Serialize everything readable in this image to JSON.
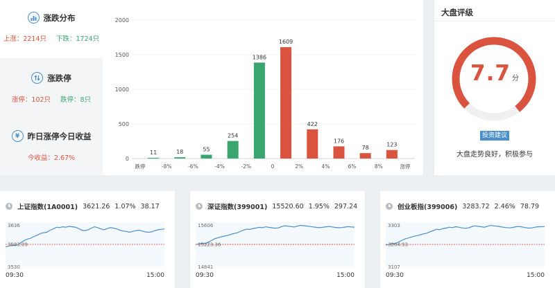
{
  "distribution": {
    "title": "涨跌分布",
    "icon": "bar-chart-icon",
    "up_label": "上涨：2214只",
    "down_label": "下跌：1724只"
  },
  "limit": {
    "title": "涨跌停",
    "icon": "exchange-icon",
    "up_label": "涨停：102只",
    "down_label": "跌停：8只"
  },
  "yesterday": {
    "title": "昨日涨停今日收益",
    "icon": "yen-icon",
    "icon_glyph": "¥",
    "profit_label": "今收益：2.67%"
  },
  "chart_data": {
    "type": "bar",
    "categories": [
      "跌停",
      "-8%~-6%",
      "-6%~-4%",
      "-4%~-2%",
      "-2%~0",
      "0~2%",
      "2%~4%",
      "4%~6%",
      "6%~8%",
      "8%~涨停"
    ],
    "values": [
      11,
      18,
      55,
      254,
      1386,
      1609,
      422,
      176,
      78,
      123
    ],
    "colors": [
      "#3aa56e",
      "#3aa56e",
      "#3aa56e",
      "#3aa56e",
      "#3aa56e",
      "#d9533f",
      "#d9533f",
      "#d9533f",
      "#d9533f",
      "#d9533f"
    ],
    "x_ticks": [
      "跌停",
      "-8%",
      "-6%",
      "-4%",
      "-2%",
      "0",
      "2%",
      "4%",
      "6%",
      "8%",
      "涨停"
    ],
    "y_ticks": [
      0,
      500,
      1000,
      1500,
      2000
    ],
    "ylim": [
      0,
      2000
    ],
    "grid": true
  },
  "rating": {
    "title": "大盘评级",
    "score": "7.7",
    "score_value": 7.7,
    "max_score": 10,
    "unit": "分",
    "badge": "投资建议",
    "description": "大盘走势良好，积极参与",
    "arc_color": "#d9533f",
    "track_color": "#f0f0f0"
  },
  "indices": [
    {
      "name": "上证指数(1A0001)",
      "price": "3621.26",
      "change_pct": "1.07%",
      "change": "38.17",
      "y_max": "3636",
      "y_prev": "3583.09",
      "y_min": "3530",
      "t_start": "09:30",
      "t_end": "15:00",
      "line_color": "#4a8fc9",
      "series": [
        3577,
        3579,
        3581,
        3580,
        3583,
        3588,
        3593,
        3596,
        3598,
        3602,
        3605,
        3609,
        3611,
        3612,
        3617,
        3620,
        3624,
        3623,
        3625,
        3624,
        3626,
        3625,
        3624,
        3621,
        3617,
        3616,
        3618,
        3622,
        3625,
        3623,
        3620,
        3618,
        3621,
        3623,
        3622,
        3620,
        3617,
        3615,
        3614,
        3612,
        3614,
        3616,
        3617,
        3615,
        3613,
        3612,
        3613,
        3616,
        3618,
        3619,
        3620
      ]
    },
    {
      "name": "深证指数(399001)",
      "price": "15520.60",
      "change_pct": "1.95%",
      "change": "297.24",
      "y_max": "15606",
      "y_prev": "15223.36",
      "y_min": "14841",
      "t_start": "09:30",
      "t_end": "15:00",
      "line_color": "#4a8fc9",
      "series": [
        15220,
        15232,
        15241,
        15238,
        15262,
        15290,
        15322,
        15338,
        15352,
        15367,
        15378,
        15395,
        15411,
        15422,
        15445,
        15467,
        15487,
        15482,
        15497,
        15506,
        15518,
        15511,
        15526,
        15519,
        15510,
        15503,
        15508,
        15528,
        15545,
        15539,
        15531,
        15524,
        15538,
        15552,
        15546,
        15540,
        15532,
        15525,
        15518,
        15512,
        15519,
        15527,
        15532,
        15525,
        15516,
        15510,
        15514,
        15522,
        15530,
        15525,
        15521
      ]
    },
    {
      "name": "创业板指(399006)",
      "price": "3283.72",
      "change_pct": "2.46%",
      "change": "78.79",
      "y_max": "3303",
      "y_prev": "3204.93",
      "y_min": "3107",
      "t_start": "09:30",
      "t_end": "15:00",
      "line_color": "#4a8fc9",
      "series": [
        3202,
        3205,
        3209,
        3208,
        3215,
        3222,
        3229,
        3233,
        3237,
        3241,
        3244,
        3248,
        3252,
        3255,
        3261,
        3266,
        3272,
        3270,
        3275,
        3277,
        3281,
        3279,
        3283,
        3281,
        3278,
        3276,
        3278,
        3283,
        3287,
        3285,
        3283,
        3281,
        3285,
        3289,
        3287,
        3286,
        3283,
        3281,
        3279,
        3278,
        3280,
        3283,
        3284,
        3282,
        3279,
        3277,
        3278,
        3281,
        3283,
        3283,
        3284
      ]
    }
  ]
}
